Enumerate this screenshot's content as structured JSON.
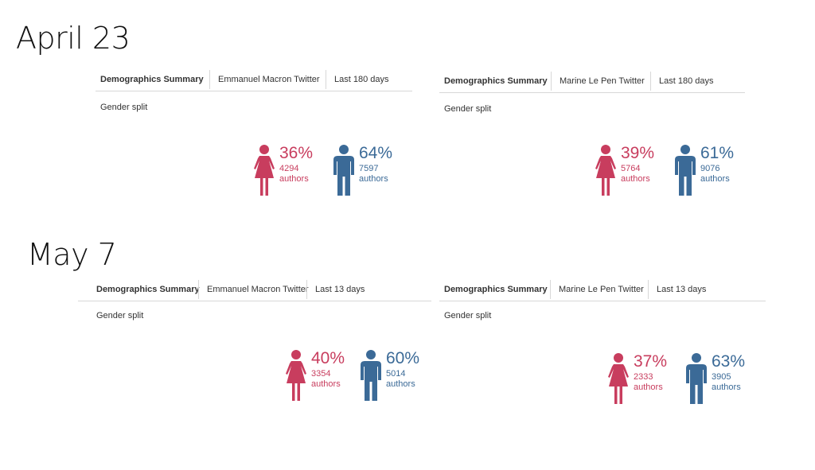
{
  "sections": [
    {
      "title": "April 23",
      "panels": [
        {
          "tabs": [
            "Demographics Summary",
            "Emmanuel Macron Twitter",
            "Last 180 days"
          ],
          "label": "Gender split",
          "female": {
            "pct": "36%",
            "count": "4294",
            "unit": "authors"
          },
          "male": {
            "pct": "64%",
            "count": "7597",
            "unit": "authors"
          }
        },
        {
          "tabs": [
            "Demographics Summary",
            "Marine Le Pen Twitter",
            "Last 180 days"
          ],
          "label": "Gender split",
          "female": {
            "pct": "39%",
            "count": "5764",
            "unit": "authors"
          },
          "male": {
            "pct": "61%",
            "count": "9076",
            "unit": "authors"
          }
        }
      ]
    },
    {
      "title": "May 7",
      "panels": [
        {
          "tabs": [
            "Demographics Summary",
            "Emmanuel Macron Twitter",
            "Last 13 days"
          ],
          "label": "Gender split",
          "female": {
            "pct": "40%",
            "count": "3354",
            "unit": "authors"
          },
          "male": {
            "pct": "60%",
            "count": "5014",
            "unit": "authors"
          }
        },
        {
          "tabs": [
            "Demographics Summary",
            "Marine Le Pen Twitter",
            "Last 13 days"
          ],
          "label": "Gender split",
          "female": {
            "pct": "37%",
            "count": "2333",
            "unit": "authors"
          },
          "male": {
            "pct": "63%",
            "count": "3905",
            "unit": "authors"
          }
        }
      ]
    }
  ],
  "icons": {
    "female": "female-person-icon",
    "male": "male-person-icon"
  },
  "colors": {
    "female": "#c83d5e",
    "male": "#3b6a97"
  }
}
